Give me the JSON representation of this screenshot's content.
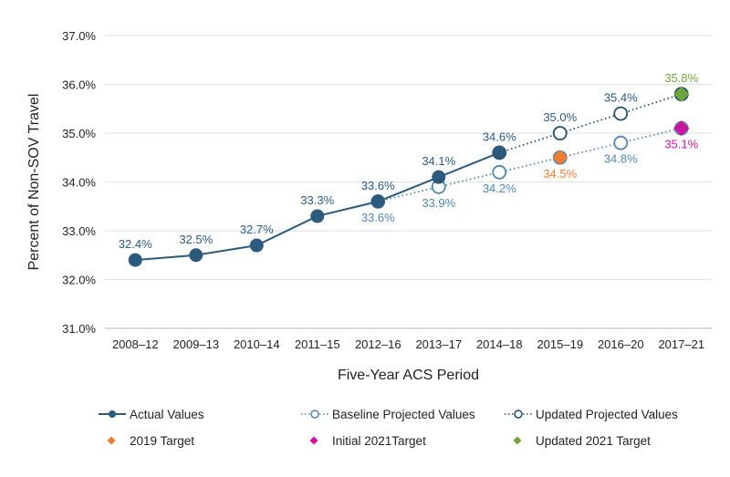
{
  "chart_data": {
    "type": "line",
    "xlabel": "Five-Year ACS Period",
    "ylabel": "Percent of Non-SOV Travel",
    "ylim": [
      31.0,
      37.0
    ],
    "yticks": [
      "31.0%",
      "32.0%",
      "33.0%",
      "34.0%",
      "35.0%",
      "36.0%",
      "37.0%"
    ],
    "grid": "horizontal",
    "legend_position": "bottom",
    "categories": [
      "2008–12",
      "2009–13",
      "2010–14",
      "2011–15",
      "2012–16",
      "2013–17",
      "2014–18",
      "2015–19",
      "2016–20",
      "2017–21"
    ],
    "series": [
      {
        "name": "Actual Values",
        "style": "solid-filled",
        "color": "#2b5a7d",
        "values": [
          32.4,
          32.5,
          32.7,
          33.3,
          33.6,
          34.1,
          34.6,
          null,
          null,
          null
        ],
        "labels": [
          "32.4%",
          "32.5%",
          "32.7%",
          "33.3%",
          "33.6%",
          "34.1%",
          "34.6%",
          null,
          null,
          null
        ]
      },
      {
        "name": "Baseline Projected Values",
        "style": "dotted-open",
        "color": "#4f86b0",
        "values": [
          null,
          null,
          null,
          null,
          33.6,
          33.9,
          34.2,
          34.5,
          34.8,
          35.1
        ],
        "labels": [
          null,
          null,
          null,
          null,
          "33.6%",
          "33.9%",
          "34.2%",
          null,
          "34.8%",
          null
        ]
      },
      {
        "name": "Updated Projected Values",
        "style": "dotted-open",
        "color": "#1f4e6e",
        "values": [
          null,
          null,
          null,
          null,
          null,
          null,
          34.6,
          35.0,
          35.4,
          35.8
        ],
        "labels": [
          null,
          null,
          null,
          null,
          null,
          null,
          null,
          "35.0%",
          "35.4%",
          null
        ]
      }
    ],
    "targets": [
      {
        "name": "2019 Target",
        "category": "2015–19",
        "value": 34.5,
        "label": "34.5%",
        "color": "#ee7d31"
      },
      {
        "name": "Initial 2021Target",
        "category": "2017–21",
        "value": 35.1,
        "label": "35.1%",
        "color": "#d0109e"
      },
      {
        "name": "Updated 2021 Target",
        "category": "2017–21",
        "value": 35.8,
        "label": "35.8%",
        "color": "#6fa43b"
      }
    ]
  }
}
